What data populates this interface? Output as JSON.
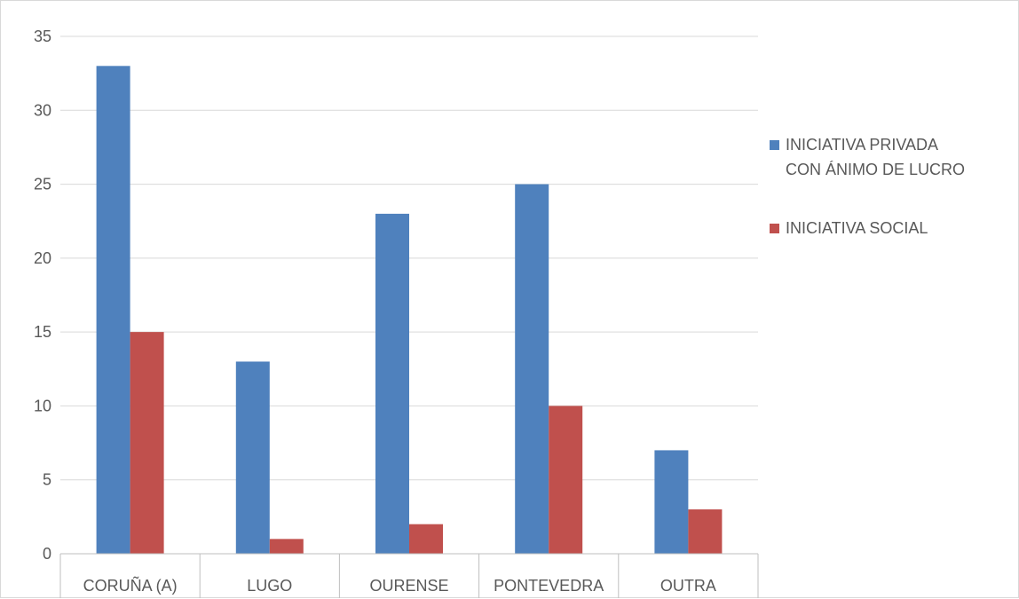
{
  "chart_data": {
    "type": "bar",
    "title": "",
    "xlabel": "",
    "ylabel": "",
    "categories": [
      "CORUÑA (A)",
      "LUGO",
      "OURENSE",
      "PONTEVEDRA",
      "OUTRA"
    ],
    "series": [
      {
        "name_lines": [
          "INICIATIVA PRIVADA",
          "CON ÁNIMO DE LUCRO"
        ],
        "color": "#4f81bd",
        "values": [
          33,
          13,
          23,
          25,
          7
        ]
      },
      {
        "name_lines": [
          "INICIATIVA SOCIAL"
        ],
        "color": "#c0504d",
        "values": [
          15,
          1,
          2,
          10,
          3
        ]
      }
    ],
    "yticks": [
      "0",
      "5",
      "10",
      "15",
      "20",
      "25",
      "30",
      "35"
    ],
    "ylim": [
      0,
      35
    ],
    "grid": true,
    "legend_position": "right"
  }
}
